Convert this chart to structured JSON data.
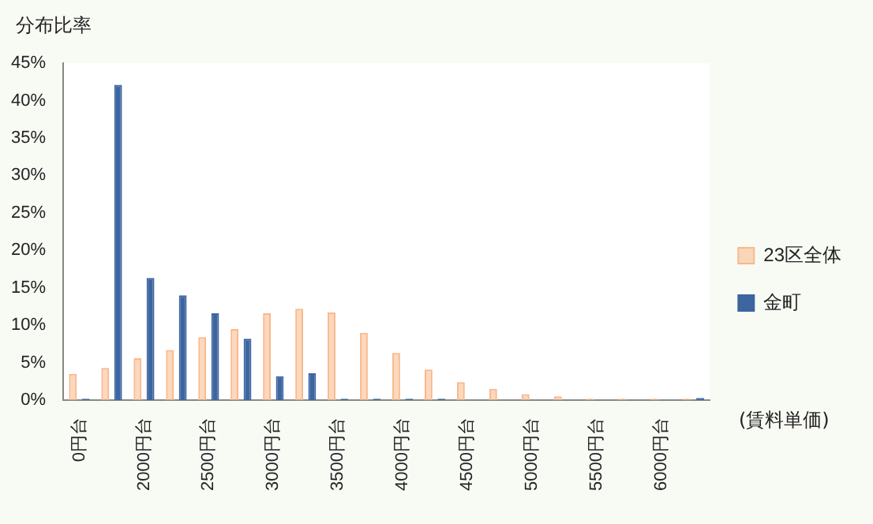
{
  "chart_data": {
    "type": "bar",
    "title": "分布比率",
    "xlabel": "(賃料単価)",
    "categories": [
      "0円台",
      null,
      "2000円台",
      null,
      "2500円台",
      null,
      "3000円台",
      null,
      "3500円台",
      null,
      "4000円台",
      null,
      "4500円台",
      null,
      "5000円台",
      null,
      "5500円台",
      null,
      "6000円台",
      null
    ],
    "series": [
      {
        "name": "23区全体",
        "color": "#f9b88a",
        "values": [
          3.5,
          4.3,
          5.6,
          6.7,
          8.4,
          9.5,
          11.6,
          12.2,
          11.7,
          9.0,
          6.3,
          4.1,
          2.4,
          1.5,
          0.8,
          0.5,
          0.2,
          0.2,
          0.2,
          0.2
        ]
      },
      {
        "name": "金町",
        "color": "#3d65a0",
        "values": [
          0.2,
          42.1,
          16.3,
          14.0,
          11.6,
          8.2,
          3.2,
          3.6,
          0.2,
          0.2,
          0.2,
          0.2,
          null,
          null,
          null,
          null,
          null,
          null,
          null,
          0.3
        ]
      }
    ],
    "ylim": [
      0,
      45
    ],
    "yticks": [
      {
        "value": 0,
        "label": "0%"
      },
      {
        "value": 5,
        "label": "5%"
      },
      {
        "value": 10,
        "label": "10%"
      },
      {
        "value": 15,
        "label": "15%"
      },
      {
        "value": 20,
        "label": "20%"
      },
      {
        "value": 25,
        "label": "25%"
      },
      {
        "value": 30,
        "label": "30%"
      },
      {
        "value": 35,
        "label": "35%"
      },
      {
        "value": 40,
        "label": "40%"
      },
      {
        "value": 45,
        "label": "45%"
      }
    ],
    "grid": false,
    "legend": "right"
  }
}
